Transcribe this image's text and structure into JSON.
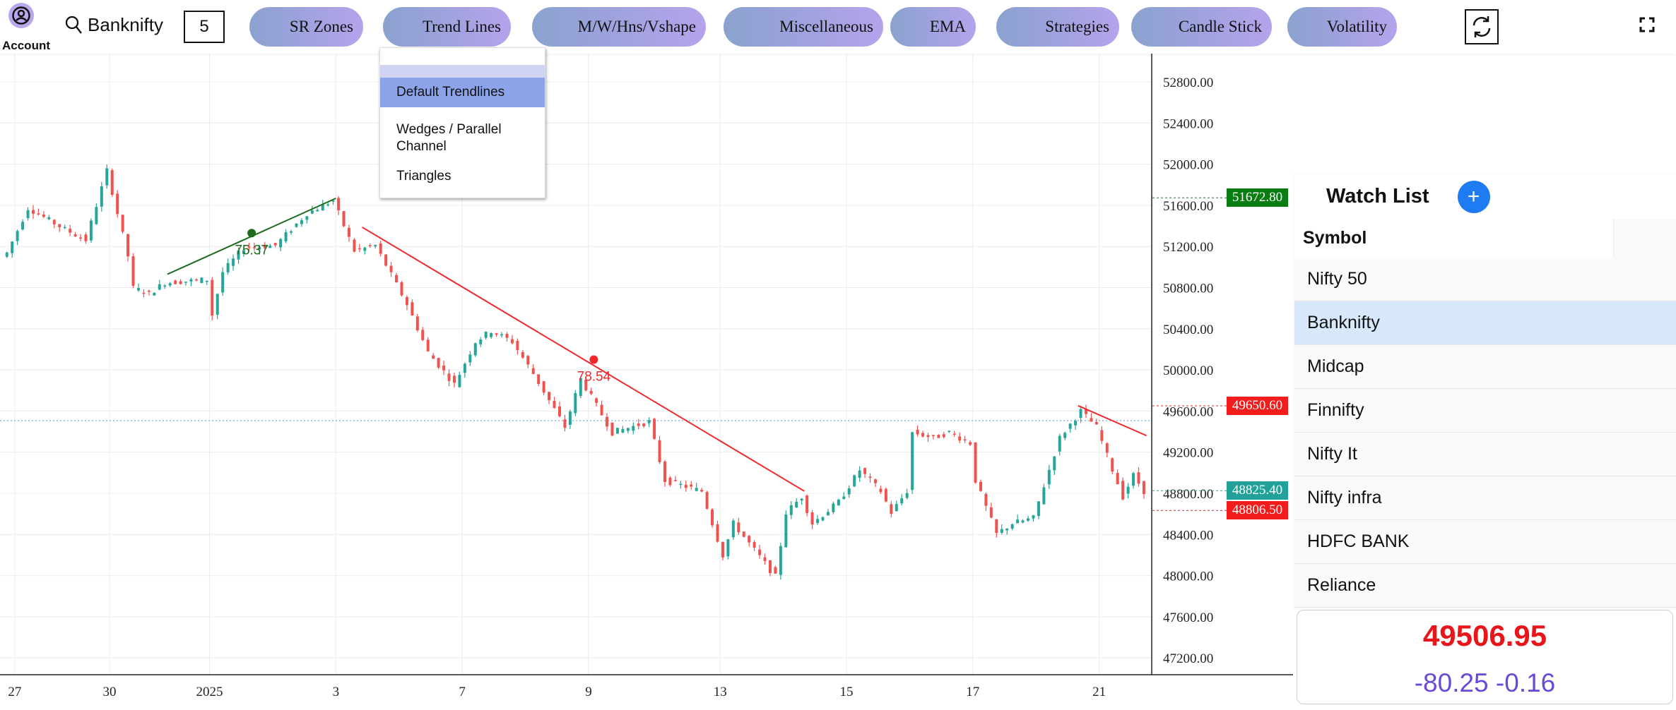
{
  "topbar": {
    "account_label": "Account",
    "symbol": "Banknifty",
    "interval": "5",
    "menu": [
      "SR Zones",
      "Trend Lines",
      "M/W/Hns/Vshape",
      "Miscellaneous",
      "EMA",
      "Strategies",
      "Candle Stick",
      "Volatility"
    ]
  },
  "dropdown": {
    "items": [
      "Default Trendlines",
      "Wedges / Parallel Channel",
      "Triangles"
    ],
    "selected": "Default Trendlines"
  },
  "chart_data": {
    "type": "candlestick",
    "y_ticks": [
      "52800.00",
      "52400.00",
      "52000.00",
      "51600.00",
      "51200.00",
      "50800.00",
      "50400.00",
      "50000.00",
      "49600.00",
      "49200.00",
      "48800.00",
      "48400.00",
      "48000.00",
      "47600.00",
      "47200.00"
    ],
    "ylim": [
      47000,
      53000
    ],
    "x_ticks": [
      {
        "label": "27",
        "bar": 2
      },
      {
        "label": "30",
        "bar": 20
      },
      {
        "label": "2025",
        "bar": 39
      },
      {
        "label": "3",
        "bar": 63
      },
      {
        "label": "7",
        "bar": 87
      },
      {
        "label": "9",
        "bar": 111
      },
      {
        "label": "13",
        "bar": 136
      },
      {
        "label": "15",
        "bar": 160
      },
      {
        "label": "17",
        "bar": 184
      },
      {
        "label": "21",
        "bar": 208
      }
    ],
    "price_path": [
      [
        0,
        51100
      ],
      [
        1,
        51138
      ],
      [
        5,
        51574
      ],
      [
        12,
        51366
      ],
      [
        16,
        51262
      ],
      [
        20,
        51938
      ],
      [
        24,
        51107
      ],
      [
        25,
        50795
      ],
      [
        28,
        50743
      ],
      [
        31,
        50847
      ],
      [
        39,
        50878
      ],
      [
        40,
        50535
      ],
      [
        42,
        50951
      ],
      [
        46,
        51190
      ],
      [
        52,
        51210
      ],
      [
        58,
        51522
      ],
      [
        63,
        51647
      ],
      [
        67,
        51158
      ],
      [
        71,
        51210
      ],
      [
        77,
        50639
      ],
      [
        81,
        50171
      ],
      [
        86,
        49860
      ],
      [
        90,
        50275
      ],
      [
        93,
        50379
      ],
      [
        97,
        50275
      ],
      [
        101,
        49963
      ],
      [
        107,
        49444
      ],
      [
        110,
        49912
      ],
      [
        116,
        49392
      ],
      [
        123,
        49496
      ],
      [
        126,
        48925
      ],
      [
        133,
        48821
      ],
      [
        137,
        48197
      ],
      [
        139,
        48508
      ],
      [
        143,
        48249
      ],
      [
        147,
        47990
      ],
      [
        149,
        48612
      ],
      [
        152,
        48768
      ],
      [
        154,
        48508
      ],
      [
        159,
        48716
      ],
      [
        163,
        49028
      ],
      [
        167,
        48821
      ],
      [
        169,
        48612
      ],
      [
        172,
        48821
      ],
      [
        173,
        49392
      ],
      [
        177,
        49340
      ],
      [
        180,
        49392
      ],
      [
        184,
        49288
      ],
      [
        185,
        48925
      ],
      [
        189,
        48405
      ],
      [
        192,
        48508
      ],
      [
        196,
        48560
      ],
      [
        198,
        48873
      ],
      [
        201,
        49340
      ],
      [
        205,
        49600
      ],
      [
        208,
        49444
      ],
      [
        211,
        49028
      ],
      [
        213,
        48768
      ],
      [
        215,
        48976
      ],
      [
        217,
        48821
      ]
    ],
    "trendlines": [
      {
        "color": "#1e6b1e",
        "from": [
          31,
          50930
        ],
        "to": [
          63,
          51668
        ],
        "marker": [
          47,
          51330
        ],
        "label": "75.37"
      },
      {
        "color": "#f0282a",
        "from": [
          68,
          51387
        ],
        "to": [
          152,
          48821
        ],
        "marker": [
          112,
          50100
        ],
        "label": "78.54"
      },
      {
        "color": "#f0282a",
        "from": [
          204,
          49652
        ],
        "to": [
          217,
          49361
        ]
      }
    ],
    "reference_line": 49506.95,
    "price_tags": [
      {
        "value": "51672.80",
        "color": "#0a7d12"
      },
      {
        "value": "49650.60",
        "color": "#f21c1c"
      },
      {
        "value": "48825.40",
        "color": "#22a19a"
      },
      {
        "value": "48806.50",
        "color": "#f21c1c"
      }
    ],
    "up_color": "#26a69a",
    "down_color": "#ef5350"
  },
  "watchlist": {
    "title": "Watch List",
    "column": "Symbol",
    "items": [
      "Nifty 50",
      "Banknifty",
      "Midcap",
      "Finnifty",
      "Nifty It",
      "Nifty infra",
      "HDFC BANK",
      "Reliance"
    ],
    "selected": "Banknifty"
  },
  "quote": {
    "price": "49506.95",
    "change": "-80.25",
    "change_pct": "-0.16"
  }
}
